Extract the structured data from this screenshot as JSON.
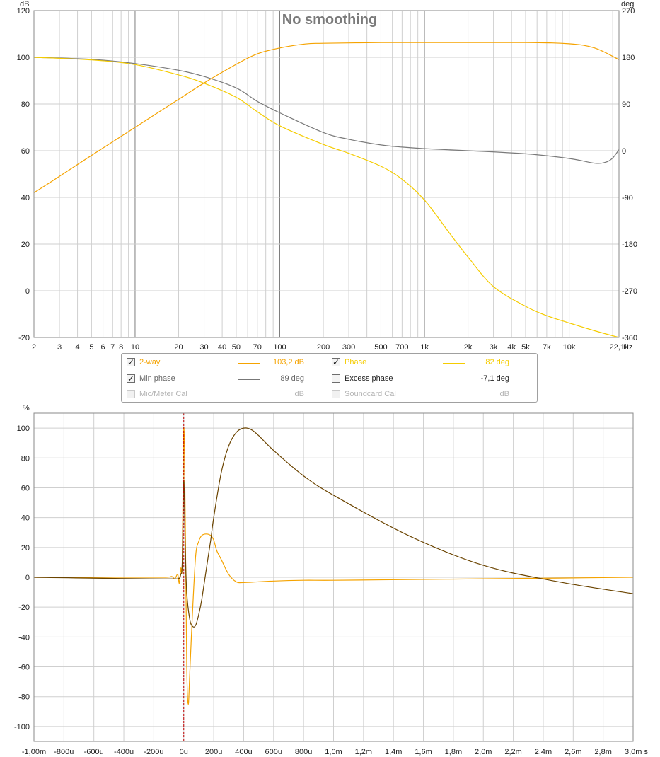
{
  "freq_chart": {
    "title": "No smoothing",
    "left_unit": "dB",
    "right_unit": "deg",
    "x_unit": "Hz",
    "y_ticks": [
      "120",
      "100",
      "80",
      "60",
      "40",
      "20",
      "0",
      "-20"
    ],
    "y2_ticks": [
      "270",
      "180",
      "90",
      "0",
      "-90",
      "-180",
      "-270",
      "-360"
    ],
    "x_ticks": [
      "2",
      "3",
      "4",
      "5",
      "6",
      "7",
      "8",
      "10",
      "20",
      "30",
      "40",
      "50",
      "70",
      "100",
      "200",
      "300",
      "500",
      "700",
      "1k",
      "2k",
      "3k",
      "4k",
      "5k",
      "7k",
      "10k",
      "22,1k"
    ]
  },
  "legend": {
    "rows": [
      [
        {
          "name": "2-way",
          "value": "103,2 dB",
          "checked": true,
          "enabled": true,
          "color": "#f5a300"
        },
        {
          "name": "Phase",
          "value": "82 deg",
          "checked": true,
          "enabled": true,
          "color": "#f5cc00"
        }
      ],
      [
        {
          "name": "Min phase",
          "value": "89 deg",
          "checked": true,
          "enabled": true,
          "color": "#777777"
        },
        {
          "name": "Excess phase",
          "value": "-7,1 deg",
          "checked": false,
          "enabled": true,
          "color": ""
        }
      ],
      [
        {
          "name": "Mic/Meter Cal",
          "value": "dB",
          "checked": false,
          "enabled": false,
          "color": ""
        },
        {
          "name": "Soundcard Cal",
          "value": "dB",
          "checked": false,
          "enabled": false,
          "color": ""
        }
      ]
    ]
  },
  "impulse_chart": {
    "y_unit": "%",
    "x_unit": "s",
    "y_ticks": [
      "100",
      "80",
      "60",
      "40",
      "20",
      "0",
      "-20",
      "-40",
      "-60",
      "-80",
      "-100"
    ],
    "x_ticks": [
      "-1,00m",
      "-800u",
      "-600u",
      "-400u",
      "-200u",
      "0u",
      "200u",
      "400u",
      "600u",
      "800u",
      "1,0m",
      "1,2m",
      "1,4m",
      "1,6m",
      "1,8m",
      "2,0m",
      "2,2m",
      "2,4m",
      "2,6m",
      "2,8m",
      "3,0m"
    ]
  },
  "chart_data": [
    {
      "type": "line",
      "title": "No smoothing",
      "xlabel": "Hz",
      "ylabel": "dB",
      "y2label": "deg",
      "xscale": "log",
      "xlim": [
        2,
        22100
      ],
      "ylim": [
        -20,
        120
      ],
      "y2lim": [
        -360,
        270
      ],
      "grid": true,
      "series": [
        {
          "name": "2-way",
          "axis": "left",
          "color": "#f5a300",
          "x": [
            2,
            3,
            5,
            10,
            20,
            30,
            50,
            70,
            100,
            150,
            200,
            500,
            1000,
            5000,
            10000,
            15000,
            22100
          ],
          "y": [
            42,
            49,
            58,
            70,
            82,
            89,
            97,
            101.5,
            104,
            105.7,
            106,
            106.3,
            106.3,
            106.3,
            105.8,
            104,
            99
          ]
        },
        {
          "name": "Phase",
          "axis": "right",
          "color": "#f5cc00",
          "x": [
            2,
            5,
            10,
            20,
            30,
            50,
            70,
            100,
            200,
            300,
            500,
            700,
            1000,
            1500,
            2000,
            3000,
            5000,
            7000,
            10000,
            15000,
            22100
          ],
          "y": [
            180,
            175,
            166,
            146,
            130,
            103,
            75,
            48,
            12,
            -5,
            -30,
            -55,
            -95,
            -160,
            -205,
            -262,
            -300,
            -318,
            -332,
            -347,
            -360
          ]
        },
        {
          "name": "Min phase",
          "axis": "right",
          "color": "#7a7a7a",
          "x": [
            2,
            5,
            10,
            20,
            30,
            50,
            70,
            100,
            200,
            300,
            500,
            700,
            1000,
            2000,
            5000,
            10000,
            15000,
            18000,
            20000,
            22100
          ],
          "y": [
            180,
            176,
            168,
            155,
            143,
            121,
            95,
            73,
            35,
            22,
            11,
            7,
            4,
            0,
            -6,
            -15,
            -24,
            -22,
            -14,
            2
          ]
        }
      ]
    },
    {
      "type": "line",
      "xlabel": "s",
      "ylabel": "%",
      "xlim": [
        -0.001,
        0.003
      ],
      "ylim": [
        -110,
        110
      ],
      "grid": true,
      "marker_x": 0.0,
      "series": [
        {
          "name": "",
          "color": "#f5a300",
          "x": [
            -0.001,
            -0.00012,
            -8e-05,
            -6e-05,
            -4e-05,
            -3e-05,
            -2e-05,
            -1e-05,
            0,
            1e-05,
            2e-05,
            3e-05,
            4e-05,
            6e-05,
            8e-05,
            0.0001,
            0.00012,
            0.00015,
            0.00018,
            0.0002,
            0.00022,
            0.00025,
            0.0003,
            0.00035,
            0.0004,
            0.0005,
            0.0006,
            0.0008,
            0.001,
            0.0015,
            0.002,
            0.0025,
            0.003
          ],
          "y": [
            0,
            0,
            0.5,
            -1,
            2,
            -4,
            6,
            10,
            100,
            40,
            -60,
            -85,
            -65,
            -20,
            15,
            24,
            28,
            29,
            28,
            25,
            18,
            12,
            2,
            -3,
            -3.5,
            -3,
            -2.5,
            -2,
            -2,
            -1.5,
            -1,
            -0.5,
            0
          ]
        },
        {
          "name": "",
          "color": "#6b4400",
          "x": [
            -0.001,
            -4e-05,
            -2e-05,
            -1e-05,
            0,
            1e-05,
            2e-05,
            4e-05,
            6e-05,
            8e-05,
            0.0001,
            0.00012,
            0.00015,
            0.00018,
            0.0002,
            0.00025,
            0.0003,
            0.00035,
            0.0004,
            0.00045,
            0.0005,
            0.0006,
            0.0008,
            0.001,
            0.0015,
            0.002,
            0.0025,
            0.003
          ],
          "y": [
            0,
            -1,
            2,
            10,
            65,
            20,
            -10,
            -28,
            -33,
            -32,
            -25,
            -15,
            5,
            25,
            40,
            70,
            88,
            97,
            100,
            99,
            95,
            85,
            68,
            55,
            28,
            8,
            -3,
            -11
          ]
        }
      ]
    }
  ]
}
